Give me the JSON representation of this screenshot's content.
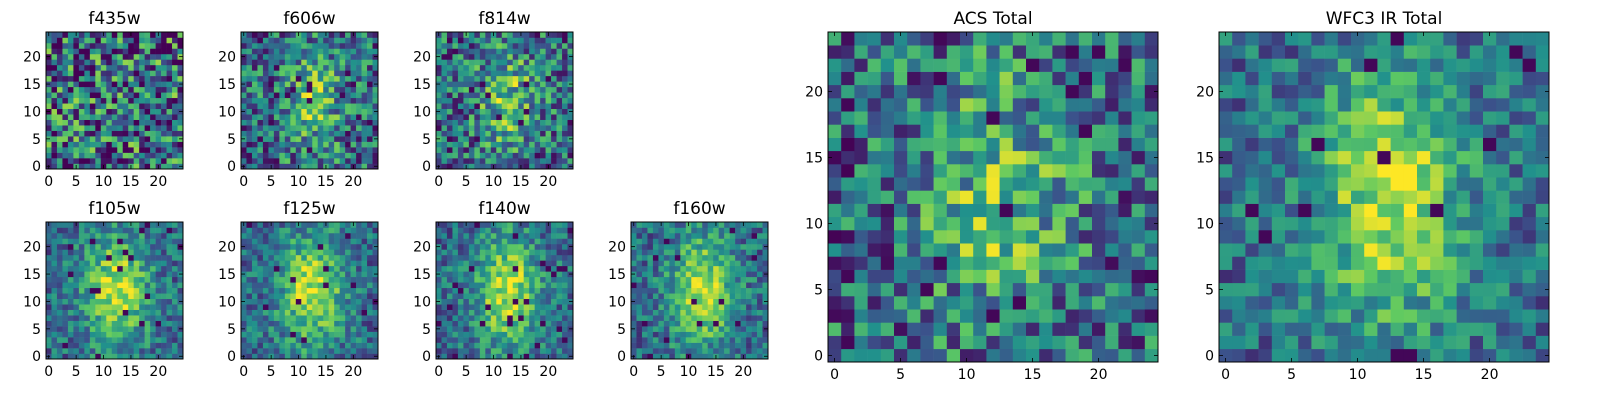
{
  "colormap": [
    "#440154",
    "#3b528b",
    "#21918c",
    "#5ec962",
    "#fde725"
  ],
  "chart_data": [
    {
      "type": "heatmap",
      "title": "f435w",
      "grid_size": 25,
      "xticks": [
        "0",
        "5",
        "10",
        "15",
        "20"
      ],
      "yticks": [
        "0",
        "5",
        "10",
        "15",
        "20"
      ],
      "xlim": [
        -0.5,
        24.5
      ],
      "ylim": [
        -0.5,
        24.5
      ],
      "structure": "noise",
      "seed": 11
    },
    {
      "type": "heatmap",
      "title": "f606w",
      "grid_size": 25,
      "xticks": [
        "0",
        "5",
        "10",
        "15",
        "20"
      ],
      "yticks": [
        "0",
        "5",
        "10",
        "15",
        "20"
      ],
      "xlim": [
        -0.5,
        24.5
      ],
      "ylim": [
        -0.5,
        24.5
      ],
      "structure": "faint-blob",
      "seed": 23
    },
    {
      "type": "heatmap",
      "title": "f814w",
      "grid_size": 25,
      "xticks": [
        "0",
        "5",
        "10",
        "15",
        "20"
      ],
      "yticks": [
        "0",
        "5",
        "10",
        "15",
        "20"
      ],
      "xlim": [
        -0.5,
        24.5
      ],
      "ylim": [
        -0.5,
        24.5
      ],
      "structure": "faint-blob",
      "seed": 37
    },
    {
      "type": "heatmap",
      "title": "f105w",
      "grid_size": 25,
      "xticks": [
        "0",
        "5",
        "10",
        "15",
        "20"
      ],
      "yticks": [
        "0",
        "5",
        "10",
        "15",
        "20"
      ],
      "xlim": [
        -0.5,
        24.5
      ],
      "ylim": [
        -0.5,
        24.5
      ],
      "structure": "bright-blob",
      "seed": 41
    },
    {
      "type": "heatmap",
      "title": "f125w",
      "grid_size": 25,
      "xticks": [
        "0",
        "5",
        "10",
        "15",
        "20"
      ],
      "yticks": [
        "0",
        "5",
        "10",
        "15",
        "20"
      ],
      "xlim": [
        -0.5,
        24.5
      ],
      "ylim": [
        -0.5,
        24.5
      ],
      "structure": "bright-blob",
      "seed": 53
    },
    {
      "type": "heatmap",
      "title": "f140w",
      "grid_size": 25,
      "xticks": [
        "0",
        "5",
        "10",
        "15",
        "20"
      ],
      "yticks": [
        "0",
        "5",
        "10",
        "15",
        "20"
      ],
      "xlim": [
        -0.5,
        24.5
      ],
      "ylim": [
        -0.5,
        24.5
      ],
      "structure": "bright-blob",
      "seed": 67
    },
    {
      "type": "heatmap",
      "title": "f160w",
      "grid_size": 25,
      "xticks": [
        "0",
        "5",
        "10",
        "15",
        "20"
      ],
      "yticks": [
        "0",
        "5",
        "10",
        "15",
        "20"
      ],
      "xlim": [
        -0.5,
        24.5
      ],
      "ylim": [
        -0.5,
        24.5
      ],
      "structure": "bright-blob",
      "seed": 79
    },
    {
      "type": "heatmap",
      "title": "ACS Total",
      "grid_size": 25,
      "xticks": [
        "0",
        "5",
        "10",
        "15",
        "20"
      ],
      "yticks": [
        "0",
        "5",
        "10",
        "15",
        "20"
      ],
      "xlim": [
        -0.5,
        24.5
      ],
      "ylim": [
        -0.5,
        24.5
      ],
      "structure": "faint-blob",
      "seed": 89
    },
    {
      "type": "heatmap",
      "title": "WFC3 IR Total",
      "grid_size": 25,
      "xticks": [
        "0",
        "5",
        "10",
        "15",
        "20"
      ],
      "yticks": [
        "0",
        "5",
        "10",
        "15",
        "20"
      ],
      "xlim": [
        -0.5,
        24.5
      ],
      "ylim": [
        -0.5,
        24.5
      ],
      "structure": "bright-blob",
      "seed": 97
    }
  ]
}
